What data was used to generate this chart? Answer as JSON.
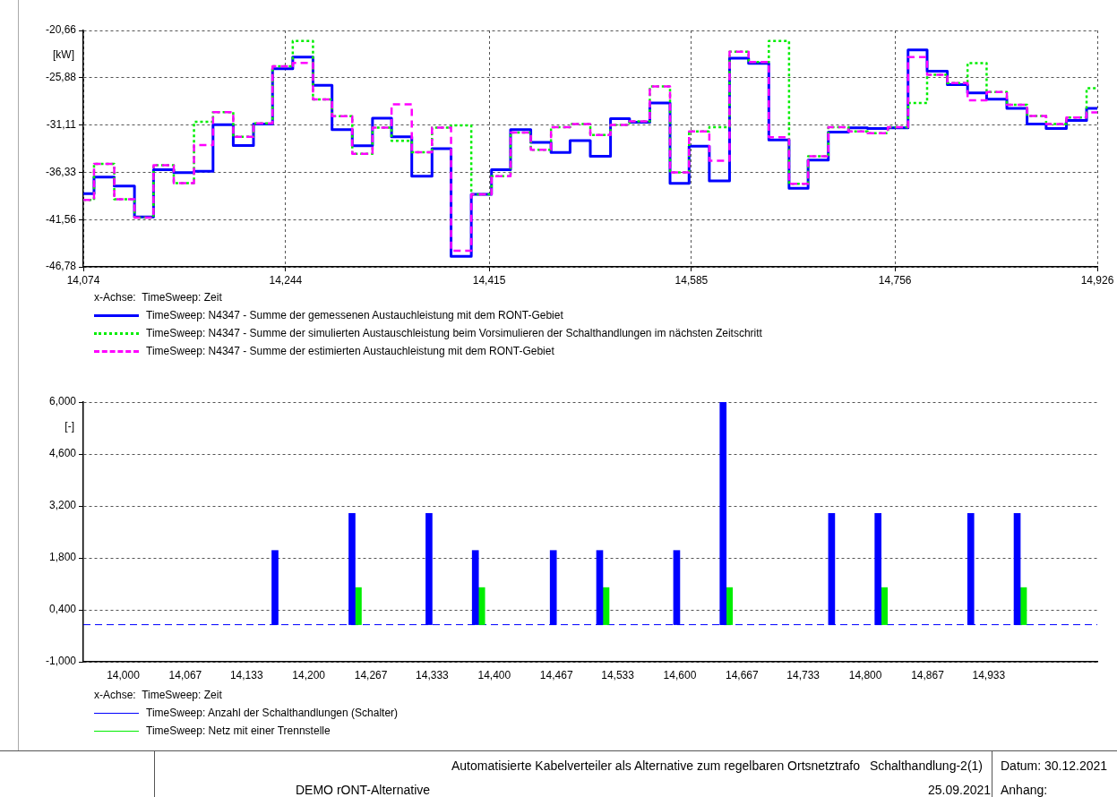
{
  "chart_data": [
    {
      "type": "step",
      "xlabel": "x-Achse:  TimeSweep: Zeit",
      "ylabel": "[kW]",
      "grid": true,
      "legend": "bottom",
      "xlim": [
        14.074,
        14.926
      ],
      "xticks": [
        {
          "value": 14.074,
          "label": "14,074"
        },
        {
          "value": 14.244,
          "label": "14,244"
        },
        {
          "value": 14.415,
          "label": "14,415"
        },
        {
          "value": 14.585,
          "label": "14,585"
        },
        {
          "value": 14.756,
          "label": "14,756"
        },
        {
          "value": 14.926,
          "label": "14,926"
        }
      ],
      "ylim": [
        -46.78,
        -20.66
      ],
      "yticks": [
        {
          "value": -20.66,
          "label": "-20,66"
        },
        {
          "value": -25.88,
          "label": "-25,88"
        },
        {
          "value": -31.11,
          "label": "-31,11"
        },
        {
          "value": -36.33,
          "label": "-36,33"
        },
        {
          "value": -41.56,
          "label": "-41,56"
        },
        {
          "value": -46.78,
          "label": "-46,78"
        }
      ],
      "x": [
        14.074,
        14.083,
        14.1,
        14.117,
        14.133,
        14.15,
        14.167,
        14.183,
        14.2,
        14.217,
        14.233,
        14.25,
        14.267,
        14.283,
        14.3,
        14.317,
        14.333,
        14.35,
        14.367,
        14.383,
        14.4,
        14.417,
        14.433,
        14.45,
        14.467,
        14.483,
        14.5,
        14.517,
        14.533,
        14.55,
        14.567,
        14.583,
        14.6,
        14.617,
        14.633,
        14.65,
        14.667,
        14.683,
        14.7,
        14.717,
        14.733,
        14.75,
        14.767,
        14.783,
        14.8,
        14.817,
        14.833,
        14.85,
        14.867,
        14.883,
        14.9,
        14.917,
        14.926
      ],
      "series": [
        {
          "name": "TimeSweep: N4347 - Summe der gemessenen Austauchleistung mit dem RONT-Gebiet",
          "color": "#0000ff",
          "line_style": "solid",
          "values": [
            -38.69,
            -36.87,
            -37.84,
            -41.26,
            -36.05,
            -36.36,
            -36.21,
            -31.08,
            -33.37,
            -31.0,
            -24.9,
            -23.61,
            -26.72,
            -31.62,
            -33.41,
            -30.36,
            -32.4,
            -36.75,
            -33.72,
            -45.61,
            -38.77,
            -36.05,
            -31.62,
            -33.02,
            -34.13,
            -32.83,
            -34.57,
            -30.41,
            -30.81,
            -28.67,
            -37.56,
            -33.44,
            -37.28,
            -23.73,
            -24.3,
            -32.75,
            -38.09,
            -34.97,
            -31.9,
            -31.42,
            -31.5,
            -31.42,
            -22.8,
            -25.15,
            -26.64,
            -27.57,
            -28.26,
            -29.27,
            -31.01,
            -31.5,
            -30.61,
            -29.27,
            -29.27
          ]
        },
        {
          "name": "TimeSweep: N4347 - Summe der simulierten Austauschleistung beim Vorsimulieren der Schalthandlungen im nächsten Zeitschritt",
          "color": "#00ee00",
          "line_style": "dotted",
          "values": [
            -39.39,
            -35.39,
            -39.31,
            -41.34,
            -35.55,
            -37.53,
            -30.76,
            -29.68,
            -32.4,
            -30.92,
            -24.62,
            -21.83,
            -28.28,
            -30.14,
            -34.3,
            -31.39,
            -32.86,
            -34.11,
            -31.39,
            -31.15,
            -38.77,
            -36.75,
            -31.94,
            -33.85,
            -31.34,
            -31.01,
            -32.22,
            -31.09,
            -30.69,
            -26.85,
            -36.35,
            -31.82,
            -31.34,
            -23.01,
            -24.14,
            -21.83,
            -37.6,
            -34.57,
            -31.34,
            -31.82,
            -32.02,
            -31.34,
            -28.67,
            -25.55,
            -26.48,
            -24.26,
            -27.45,
            -28.87,
            -30.12,
            -31.01,
            -30.28,
            -27.05,
            -27.05
          ]
        },
        {
          "name": "TimeSweep: N4347 - Summe der estimierten Austauchleistung mit dem RONT-Gebiet",
          "color": "#ff00ff",
          "line_style": "dashed",
          "values": [
            -39.39,
            -35.39,
            -39.31,
            -41.34,
            -35.55,
            -37.53,
            -33.33,
            -29.68,
            -32.4,
            -30.92,
            -24.62,
            -24.24,
            -28.28,
            -30.14,
            -34.3,
            -31.39,
            -28.83,
            -34.11,
            -31.39,
            -44.99,
            -38.77,
            -36.75,
            -31.94,
            -33.85,
            -31.34,
            -31.01,
            -32.22,
            -31.09,
            -30.69,
            -26.85,
            -36.35,
            -31.82,
            -35.06,
            -23.01,
            -24.14,
            -32.47,
            -37.6,
            -34.57,
            -31.34,
            -31.82,
            -32.02,
            -31.34,
            -23.61,
            -25.55,
            -26.48,
            -28.38,
            -27.45,
            -28.87,
            -30.12,
            -31.01,
            -30.28,
            -29.72,
            -29.72
          ]
        }
      ]
    },
    {
      "type": "bar",
      "xlabel": "x-Achse:  TimeSweep: Zeit",
      "ylabel": "[-]",
      "grid": "y",
      "legend": "bottom",
      "xlim": [
        13.957,
        15.05
      ],
      "xticks": [
        {
          "value": 14,
          "label": "14,000"
        },
        {
          "value": 14.067,
          "label": "14,067"
        },
        {
          "value": 14.133,
          "label": "14,133"
        },
        {
          "value": 14.2,
          "label": "14,200"
        },
        {
          "value": 14.267,
          "label": "14,267"
        },
        {
          "value": 14.333,
          "label": "14,333"
        },
        {
          "value": 14.4,
          "label": "14,400"
        },
        {
          "value": 14.467,
          "label": "14,467"
        },
        {
          "value": 14.533,
          "label": "14,533"
        },
        {
          "value": 14.6,
          "label": "14,600"
        },
        {
          "value": 14.667,
          "label": "14,667"
        },
        {
          "value": 14.733,
          "label": "14,733"
        },
        {
          "value": 14.8,
          "label": "14,800"
        },
        {
          "value": 14.867,
          "label": "14,867"
        },
        {
          "value": 14.933,
          "label": "14,933"
        }
      ],
      "ylim": [
        -1,
        6
      ],
      "yticks": [
        {
          "value": 6,
          "label": "6,000"
        },
        {
          "value": 4.6,
          "label": "4,600"
        },
        {
          "value": 3.2,
          "label": "3,200"
        },
        {
          "value": 1.8,
          "label": "1,800"
        },
        {
          "value": 0.4,
          "label": "0,400"
        },
        {
          "value": -1,
          "label": "-1,000"
        }
      ],
      "ref_lines": [
        {
          "axis": "y",
          "value": 0,
          "color": "#0000ff",
          "line_style": "dashed"
        }
      ],
      "series": [
        {
          "name": "TimeSweep: Anzahl der Schalthandlungen (Schalter)",
          "color": "#0000ff",
          "x": [
            14.167,
            14.25,
            14.333,
            14.383,
            14.467,
            14.517,
            14.6,
            14.65,
            14.767,
            14.817,
            14.917,
            14.967
          ],
          "values": [
            2,
            3,
            3,
            2,
            2,
            2,
            2,
            6,
            3,
            3,
            3,
            3
          ]
        },
        {
          "name": "TimeSweep: Netz mit einer Trennstelle",
          "color": "#00ee00",
          "x": [
            14.25,
            14.383,
            14.517,
            14.65,
            14.817,
            14.967
          ],
          "values": [
            1,
            1,
            1,
            1,
            1,
            1
          ]
        }
      ]
    },
    {
      "type": "other",
      "annotations": [
        "Automatisierte Kabelverteiler als Alternative zum regelbaren Ortsnetztrafo",
        "Schalthandlung-2(1)",
        "DEMO rONT-Alternative",
        "25.09.2021",
        "Datum: 30.12.2021",
        "Anhang:"
      ]
    }
  ]
}
